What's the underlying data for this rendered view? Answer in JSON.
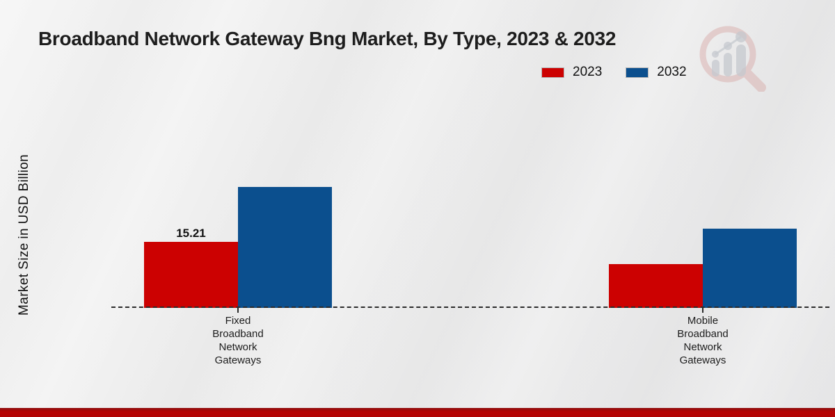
{
  "page": {
    "title": "Broadband Network Gateway Bng Market, By Type, 2023 & 2032",
    "watermark_icon": "market-research-magnifier-logo",
    "footer_color": "#b10404",
    "background_color": "#ededed"
  },
  "chart_data": {
    "type": "bar",
    "title": "Broadband Network Gateway Bng Market, By Type, 2023 & 2032",
    "xlabel": "",
    "ylabel": "Market Size in USD Billion",
    "categories": [
      "Fixed Broadband Network Gateways",
      "Mobile Broadband Network Gateways"
    ],
    "series": [
      {
        "name": "2023",
        "color": "#cc0101",
        "values": [
          15.21,
          10.1
        ],
        "data_labels": [
          "15.21",
          null
        ]
      },
      {
        "name": "2032",
        "color": "#0b4f8e",
        "values": [
          27.9,
          18.3
        ],
        "data_labels": [
          null,
          null
        ]
      }
    ],
    "ylim": [
      0,
      30
    ],
    "grid": false,
    "legend_position": "top-right",
    "baseline_style": "dashed",
    "value_label_shown": "15.21"
  }
}
